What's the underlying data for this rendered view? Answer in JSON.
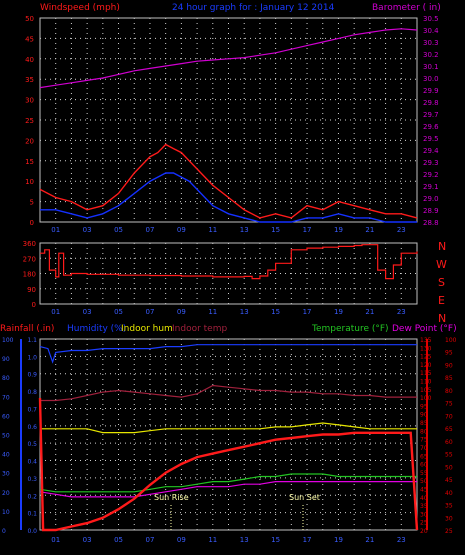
{
  "header": {
    "windspeed_label": "Windspeed (mph)",
    "title": "24 hour graph for : January 12 2014",
    "barometer_label": "Barometer ( in)"
  },
  "colors": {
    "background": "#000000",
    "grid": "#cfcfcf",
    "frame": "#c0c0c0",
    "wind_red": "#ff1a1a",
    "wind_blue": "#1430ff",
    "barometer": "#d000d0",
    "direction": "#ff1a1a",
    "humidity": "#1a3cff",
    "indoor_hum": "#e6e600",
    "indoor_temp": "#a0203c",
    "temperature": "#22c422",
    "dew_point": "#e000e0",
    "rainfall": "#ff1a1a",
    "bottom_left_axis": "#1a3cff",
    "bottom_right_axis": "#e00000",
    "sun_marker": "#ffffaa"
  },
  "compass": [
    "N",
    "W",
    "S",
    "E",
    "N"
  ],
  "legend_bottom": {
    "rainfall": "Rainfall (.in)",
    "humidity": "Humidity (%)",
    "indoor_hum": "Indoor hum",
    "indoor_temp": "Indoor temp",
    "temperature": "Temperature (°F)",
    "dew_point": "Dew Point (°F)"
  },
  "annotations": {
    "sun_rise": "Sun Rise",
    "sun_set": "Sun Set"
  },
  "chart_data": [
    {
      "type": "line",
      "title": "24 hour graph for : January 12 2014",
      "xlabel": "",
      "x_ticks": [
        "01",
        "03",
        "05",
        "07",
        "09",
        "11",
        "13",
        "15",
        "17",
        "19",
        "21",
        "23"
      ],
      "y_left_label": "Windspeed (mph)",
      "y_left_ticks": [
        0,
        5,
        10,
        15,
        20,
        25,
        30,
        35,
        40,
        45,
        50
      ],
      "ylim_left": [
        0,
        50
      ],
      "y_right_label": "Barometer ( in)",
      "y_right_ticks": [
        28.8,
        28.9,
        29.0,
        29.1,
        29.2,
        29.3,
        29.4,
        29.5,
        29.6,
        29.7,
        29.8,
        29.9,
        30.0,
        30.1,
        30.2,
        30.3,
        30.4,
        30.5
      ],
      "ylim_right": [
        28.8,
        30.5
      ],
      "grid": true,
      "series": [
        {
          "key": "gust",
          "x": [
            0,
            1,
            2,
            3,
            4,
            5,
            6,
            7,
            7.5,
            8,
            8.5,
            9,
            9.5,
            10,
            10.5,
            11,
            12,
            13,
            14,
            15,
            16,
            17,
            18,
            19,
            20,
            21,
            22,
            23,
            24
          ],
          "values": [
            8,
            6,
            5,
            3,
            4,
            7,
            12,
            16,
            17,
            19,
            18,
            17,
            15,
            13,
            11,
            9,
            6,
            3,
            1,
            2,
            1,
            4,
            3,
            5,
            4,
            3,
            2,
            2,
            1
          ]
        },
        {
          "key": "average",
          "x": [
            0,
            1,
            2,
            3,
            4,
            5,
            6,
            7,
            7.5,
            8,
            8.5,
            9,
            9.5,
            10,
            10.5,
            11,
            12,
            13,
            14,
            15,
            16,
            17,
            18,
            19,
            20,
            21,
            22,
            23,
            24
          ],
          "values": [
            3,
            3,
            2,
            1,
            2,
            4,
            7,
            10,
            11,
            12,
            12,
            11,
            10,
            8,
            6,
            4,
            2,
            1,
            0,
            0,
            0,
            1,
            1,
            2,
            1,
            1,
            0,
            0,
            0
          ]
        },
        {
          "key": "barometer",
          "x": [
            0,
            1,
            2,
            3,
            4,
            5,
            6,
            7,
            8,
            9,
            10,
            11,
            12,
            13,
            14,
            15,
            16,
            17,
            18,
            19,
            20,
            21,
            22,
            23,
            24
          ],
          "values": [
            29.92,
            29.94,
            29.96,
            29.98,
            30.0,
            30.03,
            30.06,
            30.08,
            30.1,
            30.12,
            30.14,
            30.15,
            30.16,
            30.17,
            30.19,
            30.21,
            30.24,
            30.27,
            30.3,
            30.33,
            30.36,
            30.38,
            30.4,
            30.41,
            30.4
          ]
        }
      ]
    },
    {
      "type": "line",
      "y_ticks": [
        0,
        90,
        180,
        270,
        360
      ],
      "ylim": [
        0,
        360
      ],
      "x_ticks": [
        "01",
        "03",
        "05",
        "07",
        "09",
        "11",
        "13",
        "15",
        "17",
        "19",
        "21",
        "23"
      ],
      "grid": true,
      "series": [
        {
          "key": "wind_direction",
          "x": [
            0,
            0.3,
            0.6,
            1,
            1.2,
            1.5,
            2,
            3,
            5,
            7,
            9,
            11,
            13,
            13.5,
            14,
            14.5,
            15,
            16,
            17,
            18,
            19,
            20,
            20.5,
            21,
            21.5,
            22,
            22.5,
            23,
            24
          ],
          "values": [
            300,
            320,
            200,
            160,
            300,
            170,
            180,
            175,
            170,
            168,
            165,
            160,
            163,
            150,
            165,
            200,
            240,
            320,
            330,
            335,
            340,
            345,
            350,
            350,
            200,
            150,
            230,
            300,
            310
          ]
        }
      ]
    },
    {
      "type": "line",
      "x_ticks": [
        "01",
        "03",
        "05",
        "07",
        "09",
        "11",
        "13",
        "15",
        "17",
        "19",
        "21",
        "23"
      ],
      "y_left_rain_ticks": [
        0,
        0.1,
        0.2,
        0.3,
        0.4,
        0.5,
        0.6,
        0.7,
        0.8,
        0.9,
        1.0,
        1.1
      ],
      "ylim_left_rain": [
        0,
        1.1
      ],
      "y_left_humidity_ticks": [
        0,
        10,
        20,
        30,
        40,
        50,
        60,
        70,
        80,
        90,
        100
      ],
      "ylim_left_humidity": [
        0,
        100
      ],
      "y_right_inner_ticks": [
        20,
        25,
        30,
        35,
        40,
        45,
        50,
        55,
        60,
        65,
        70,
        75,
        80,
        85,
        90,
        95,
        100,
        105,
        110,
        115,
        120,
        125,
        130,
        135
      ],
      "ylim_right_inner": [
        20,
        135
      ],
      "y_right_outer_ticks": [
        25,
        30,
        35,
        40,
        45,
        50,
        55,
        60,
        65,
        70,
        75,
        80,
        85,
        90,
        95,
        100
      ],
      "ylim_right_outer": [
        25,
        100
      ],
      "grid": true,
      "series": [
        {
          "key": "humidity",
          "x": [
            0,
            0.5,
            0.8,
            1,
            2,
            3,
            4,
            5,
            6,
            7,
            8,
            9,
            10,
            11,
            12,
            13,
            14,
            15,
            16,
            17,
            18,
            19,
            20,
            21,
            22,
            23,
            24
          ],
          "values": [
            96,
            95,
            88,
            93,
            94,
            94,
            95,
            95,
            95,
            95,
            96,
            96,
            97,
            97,
            97,
            97,
            97,
            97,
            97,
            97,
            97,
            97,
            97,
            97,
            97,
            97,
            97
          ]
        },
        {
          "key": "indoor_temp",
          "x": [
            0,
            1,
            2,
            3,
            4,
            5,
            6,
            7,
            8,
            9,
            10,
            11,
            12,
            13,
            14,
            15,
            16,
            17,
            18,
            19,
            20,
            21,
            22,
            23,
            24
          ],
          "values": [
            98,
            98,
            99,
            101,
            103,
            104,
            103,
            102,
            101,
            100,
            102,
            107,
            106,
            105,
            104,
            104,
            103,
            103,
            102,
            102,
            101,
            101,
            100,
            100,
            100
          ]
        },
        {
          "key": "indoor_hum",
          "x": [
            0,
            1,
            2,
            3,
            4,
            5,
            6,
            7,
            8,
            9,
            10,
            11,
            12,
            13,
            14,
            15,
            16,
            17,
            18,
            19,
            20,
            21,
            22,
            23,
            24
          ],
          "values": [
            53,
            53,
            53,
            53,
            51,
            51,
            51,
            52,
            53,
            53,
            53,
            53,
            53,
            53,
            53,
            54,
            54,
            55,
            56,
            55,
            54,
            53,
            53,
            53,
            53
          ]
        },
        {
          "key": "temperature",
          "x": [
            0,
            1,
            2,
            3,
            4,
            5,
            6,
            7,
            8,
            9,
            10,
            11,
            12,
            13,
            14,
            15,
            16,
            17,
            18,
            19,
            20,
            21,
            22,
            23,
            24
          ],
          "values": [
            41,
            40,
            40,
            40,
            40,
            40,
            40,
            41,
            42,
            42,
            43,
            44,
            44,
            45,
            46,
            46,
            47,
            47,
            47,
            46,
            46,
            46,
            46,
            46,
            46
          ]
        },
        {
          "key": "dew_point",
          "x": [
            0,
            1,
            2,
            3,
            4,
            5,
            6,
            7,
            8,
            9,
            10,
            11,
            12,
            13,
            14,
            15,
            16,
            17,
            18,
            19,
            20,
            21,
            22,
            23,
            24
          ],
          "values": [
            40,
            39,
            38,
            38,
            38,
            38,
            38,
            39,
            40,
            41,
            42,
            42,
            42,
            43,
            43,
            44,
            44,
            44,
            44,
            44,
            44,
            44,
            44,
            44,
            44
          ]
        },
        {
          "key": "rainfall",
          "x": [
            0,
            0.2,
            1,
            2,
            3,
            4,
            5,
            6,
            7,
            8,
            9,
            10,
            11,
            12,
            13,
            14,
            15,
            16,
            17,
            18,
            19,
            20,
            21,
            22,
            23,
            23.6,
            24
          ],
          "values": [
            0.76,
            0.0,
            0.0,
            0.02,
            0.04,
            0.07,
            0.12,
            0.18,
            0.26,
            0.33,
            0.38,
            0.42,
            0.44,
            0.46,
            0.48,
            0.5,
            0.52,
            0.53,
            0.54,
            0.55,
            0.55,
            0.56,
            0.56,
            0.56,
            0.56,
            0.56,
            0.0
          ]
        }
      ]
    }
  ]
}
